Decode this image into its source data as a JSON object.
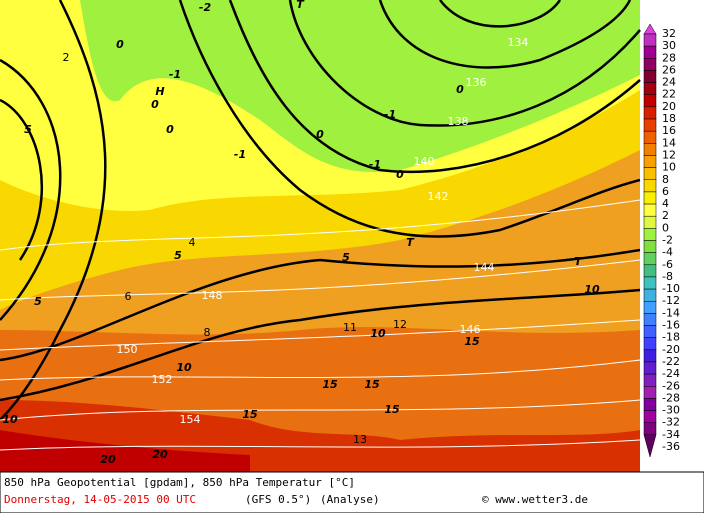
{
  "map": {
    "labels": [
      "0",
      "0",
      "0",
      "0",
      "0",
      "0",
      "-1",
      "-1",
      "-1",
      "-1",
      "-2",
      "H",
      "T",
      "T",
      "T",
      "134",
      "136",
      "138",
      "140",
      "142",
      "144",
      "146",
      "148",
      "150",
      "152",
      "154",
      "5",
      "5",
      "5",
      "5",
      "10",
      "10",
      "10",
      "10",
      "15",
      "15",
      "15",
      "15",
      "15",
      "20",
      "20",
      "2",
      "4",
      "6",
      "8",
      "11",
      "12",
      "13"
    ]
  },
  "colorbar": {
    "values": [
      32,
      30,
      28,
      26,
      24,
      22,
      20,
      18,
      16,
      14,
      12,
      10,
      8,
      6,
      4,
      2,
      0,
      -2,
      -4,
      -6,
      -8,
      -10,
      -12,
      -14,
      -16,
      -18,
      -20,
      -22,
      -24,
      -26,
      -28,
      -30,
      -32,
      -34,
      -36
    ],
    "colors": [
      "#e040e0",
      "#c030c0",
      "#a00090",
      "#900060",
      "#800030",
      "#a00010",
      "#c00000",
      "#d82000",
      "#e84000",
      "#f06000",
      "#f08000",
      "#f8a000",
      "#f8c000",
      "#f8d800",
      "#f8f000",
      "#ffff40",
      "#e0f840",
      "#a0f040",
      "#80e040",
      "#60d060",
      "#40c080",
      "#40c0c0",
      "#40b0e0",
      "#40a0ff",
      "#4080ff",
      "#4060ff",
      "#4040ff",
      "#4020e0",
      "#6020d0",
      "#8020c0",
      "#a020b0",
      "#8000a0",
      "#a000a0",
      "#800080",
      "#600060"
    ]
  },
  "footer": {
    "title": "850 hPa Geopotential [gpdam], 850 hPa Temperatur [°C]",
    "date": "Donnerstag, 14-05-2015  00 UTC",
    "model": "(GFS 0.5°)",
    "mode": "(Analyse)",
    "credit": "© www.wetter3.de"
  }
}
